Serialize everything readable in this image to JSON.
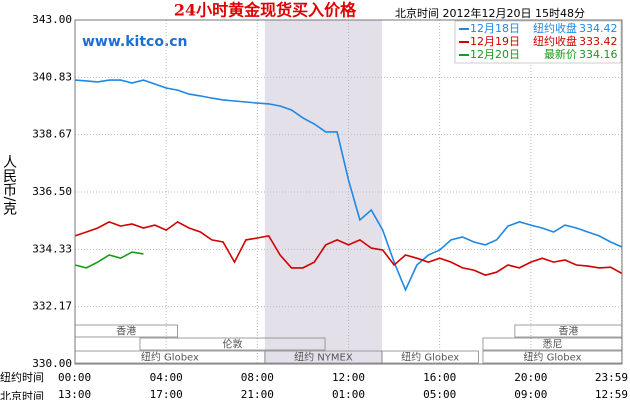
{
  "chart_data": {
    "type": "line",
    "title": "24小时黄金现货买入价格",
    "site": "www.kitco.cn",
    "timestamp": "北京时间  2012年12月20日 15时48分",
    "y_label": "人民币/克",
    "x_label_top": "纽约时间",
    "x_label_bottom": "北京时间",
    "xlim": [
      0,
      24
    ],
    "ylim": [
      330,
      343
    ],
    "yticks": [
      {
        "value": 343,
        "label": "343.00"
      },
      340.83,
      338.67,
      {
        "value": 336.5,
        "label": "336.50"
      },
      334.33,
      332.17,
      {
        "value": 330,
        "label": "330.00"
      }
    ],
    "xticks": [
      {
        "value": 0,
        "label": "00:00"
      },
      {
        "value": 4,
        "label": "04:00"
      },
      {
        "value": 8,
        "label": "08:00"
      },
      {
        "value": 12,
        "label": "12:00"
      },
      {
        "value": 16,
        "label": "16:00"
      },
      {
        "value": 20,
        "label": "20:00"
      },
      {
        "value": 23.98,
        "label": "23:59"
      }
    ],
    "beijing_time_labels": [
      "13:00",
      "17:00",
      "21:00",
      "01:00",
      "05:00",
      "09:00",
      "12:59"
    ],
    "grid": true,
    "highlight_x": [
      8.33,
      13.47
    ],
    "sessions": [
      {
        "label": "香港",
        "start": 0,
        "end": 4.5
      },
      {
        "label": "伦敦",
        "start": 2.85,
        "end": 10.97
      },
      {
        "label": "纽约 Globex",
        "start": 0,
        "end": 8.33
      },
      {
        "label": "纽约 NYMEX",
        "start": 8.33,
        "end": 13.47
      },
      {
        "label": "纽约 Globex",
        "start": 13.47,
        "end": 17.7
      },
      {
        "label": "悉尼",
        "start": 17.9,
        "end": 24
      },
      {
        "label": "香港",
        "start": 19.3,
        "end": 24
      },
      {
        "label": "纽约 Globex",
        "start": 17.9,
        "end": 24
      }
    ],
    "x": [
      0,
      0.5,
      1,
      1.5,
      2,
      2.5,
      3,
      3.5,
      4,
      4.5,
      5,
      5.5,
      6,
      6.5,
      7,
      7.5,
      8,
      8.5,
      9,
      9.5,
      10,
      10.5,
      11,
      11.5,
      12,
      12.5,
      13,
      13.5,
      14,
      14.5,
      15,
      15.5,
      16,
      16.5,
      17,
      17.5,
      18,
      18.5,
      19,
      19.5,
      20,
      20.5,
      21,
      21.5,
      22,
      22.5,
      23,
      23.5,
      24
    ],
    "series": [
      {
        "name": "12月18日",
        "legend_label": "纽约收盘",
        "legend_value": 334.42,
        "color": "#1e88e5",
        "values": [
          340.73,
          340.7,
          340.66,
          340.73,
          340.73,
          340.62,
          340.73,
          340.58,
          340.43,
          340.35,
          340.2,
          340.13,
          340.05,
          339.98,
          339.94,
          339.9,
          339.86,
          339.83,
          339.75,
          339.6,
          339.3,
          339.07,
          338.77,
          338.77,
          336.95,
          335.44,
          335.82,
          335.06,
          333.85,
          332.8,
          333.74,
          334.12,
          334.31,
          334.69,
          334.8,
          334.61,
          334.5,
          334.69,
          335.21,
          335.37,
          335.25,
          335.14,
          334.99,
          335.25,
          335.14,
          334.99,
          334.84,
          334.61,
          334.42
        ]
      },
      {
        "name": "12月19日",
        "legend_label": "纽约收盘",
        "legend_value": 333.42,
        "color": "#d00000",
        "values": [
          334.84,
          334.99,
          335.14,
          335.37,
          335.21,
          335.29,
          335.14,
          335.25,
          335.06,
          335.37,
          335.14,
          334.99,
          334.69,
          334.61,
          333.85,
          334.69,
          334.76,
          334.84,
          334.12,
          333.63,
          333.63,
          333.85,
          334.5,
          334.69,
          334.5,
          334.69,
          334.38,
          334.31,
          333.74,
          334.12,
          334.0,
          333.85,
          334.0,
          333.85,
          333.63,
          333.55,
          333.36,
          333.47,
          333.74,
          333.63,
          333.85,
          334.0,
          333.85,
          333.93,
          333.74,
          333.7,
          333.63,
          333.66,
          333.42
        ]
      },
      {
        "name": "12月20日",
        "legend_label": "最新价",
        "legend_value": 334.16,
        "color": "#1a9a1a",
        "values": [
          333.74,
          333.63,
          333.85,
          334.12,
          334.0,
          334.23,
          334.16,
          null,
          null,
          null,
          null,
          null,
          null,
          null,
          null,
          null,
          null,
          null,
          null,
          null,
          null,
          null,
          null,
          null,
          null,
          null,
          null,
          null,
          null,
          null,
          null,
          null,
          null,
          null,
          null,
          null,
          null,
          null,
          null,
          null,
          null,
          null,
          null,
          null,
          null,
          null,
          null,
          null,
          null
        ]
      }
    ]
  }
}
